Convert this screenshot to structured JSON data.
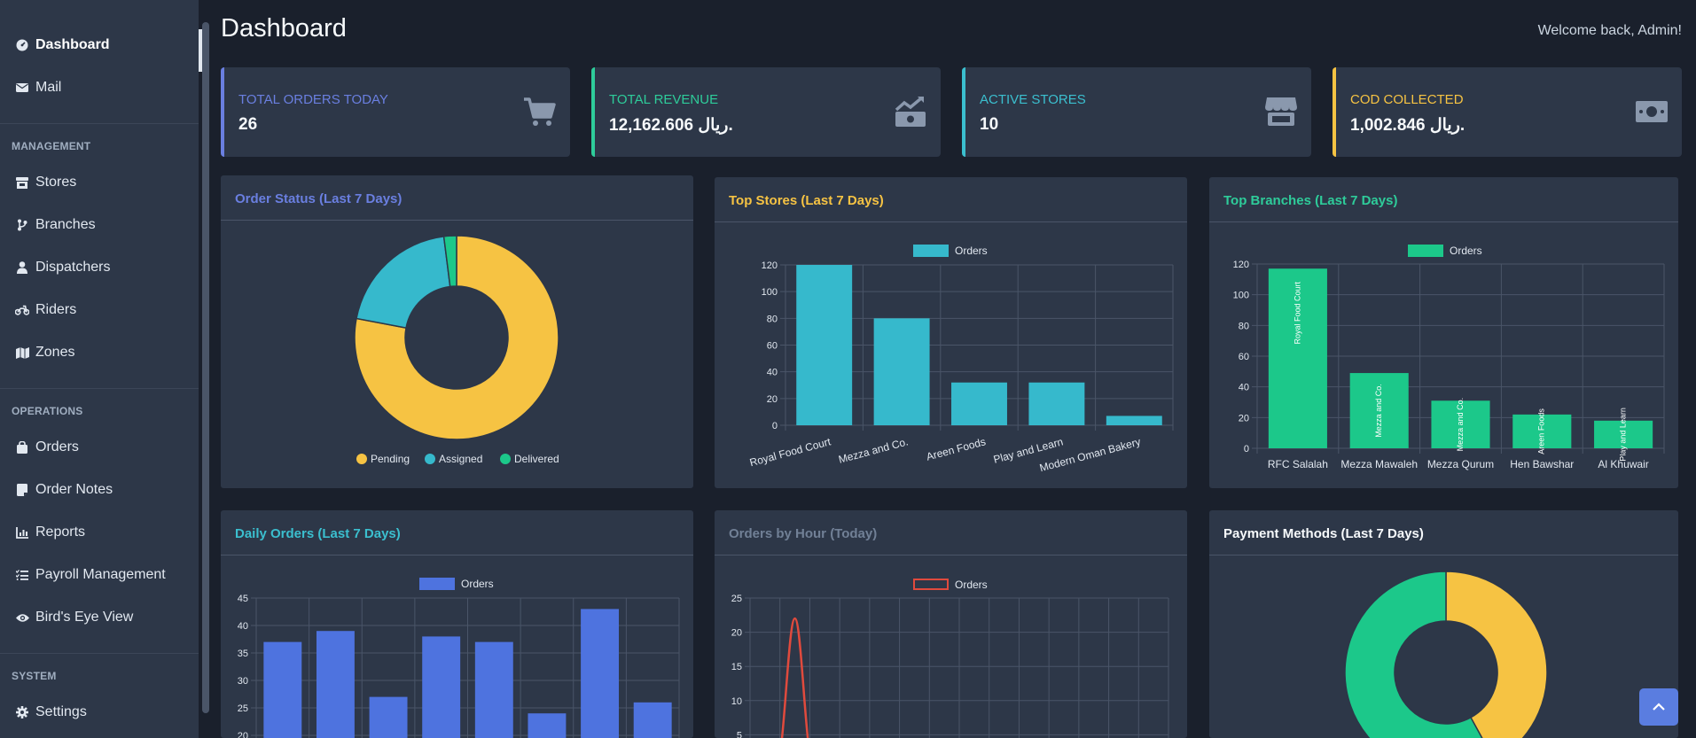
{
  "nav": {
    "top": [
      {
        "label": "Dashboard",
        "icon": "dashboard-icon"
      },
      {
        "label": "Mail",
        "icon": "mail-icon"
      }
    ],
    "sections": [
      {
        "title": "MANAGEMENT",
        "items": [
          {
            "label": "Stores",
            "icon": "store-icon"
          },
          {
            "label": "Branches",
            "icon": "branch-icon"
          },
          {
            "label": "Dispatchers",
            "icon": "user-icon"
          },
          {
            "label": "Riders",
            "icon": "motorcycle-icon"
          },
          {
            "label": "Zones",
            "icon": "map-icon"
          }
        ]
      },
      {
        "title": "OPERATIONS",
        "items": [
          {
            "label": "Orders",
            "icon": "bag-icon"
          },
          {
            "label": "Order Notes",
            "icon": "note-icon"
          },
          {
            "label": "Reports",
            "icon": "chart-icon"
          },
          {
            "label": "Payroll Management",
            "icon": "list-icon"
          },
          {
            "label": "Bird's Eye View",
            "icon": "eye-icon"
          }
        ]
      },
      {
        "title": "SYSTEM",
        "items": [
          {
            "label": "Settings",
            "icon": "gear-icon"
          }
        ]
      }
    ]
  },
  "header": {
    "title": "Dashboard",
    "welcome": "Welcome back, Admin!"
  },
  "stats": [
    {
      "label": "TOTAL ORDERS TODAY",
      "value": "26",
      "color": "#6a7fe0",
      "icon": "cart-icon"
    },
    {
      "label": "TOTAL REVENUE",
      "value": "12,162.606 ريال.",
      "color": "#2ecc9a",
      "icon": "money-chart-icon"
    },
    {
      "label": "ACTIVE STORES",
      "value": "10",
      "color": "#3bbfcf",
      "icon": "storefront-icon"
    },
    {
      "label": "COD COLLECTED",
      "value": "1,002.846 ريال.",
      "color": "#f6c343",
      "icon": "cash-icon"
    }
  ],
  "panels": {
    "order_status": "Order Status (Last 7 Days)",
    "top_stores": "Top Stores (Last 7 Days)",
    "top_branches": "Top Branches (Last 7 Days)",
    "daily_orders": "Daily Orders (Last 7 Days)",
    "orders_by_hour": "Orders by Hour (Today)",
    "payment_methods": "Payment Methods (Last 7 Days)"
  },
  "colors": {
    "yellow": "#f6c343",
    "cyan": "#36b9cc",
    "green": "#1cc88a",
    "blue": "#4e73df",
    "red": "#e04a3d"
  },
  "chart_data": [
    {
      "id": "order_status",
      "type": "pie",
      "labels": [
        "Pending",
        "Assigned",
        "Delivered"
      ],
      "values": [
        78,
        20,
        2
      ],
      "legend": "bottom"
    },
    {
      "id": "top_stores",
      "type": "bar",
      "categories": [
        "Royal Food Court",
        "Mezza and Co.",
        "Areen Foods",
        "Play and Learn",
        "Modern Oman Bakery"
      ],
      "series": [
        {
          "name": "Orders",
          "values": [
            120,
            80,
            32,
            32,
            7
          ]
        }
      ],
      "ylim": [
        0,
        120
      ],
      "yticks": [
        0,
        20,
        40,
        60,
        80,
        100,
        120
      ],
      "legend": "top"
    },
    {
      "id": "top_branches",
      "type": "bar",
      "categories": [
        "RFC Salalah",
        "Mezza Mawaleh",
        "Mezza Qurum",
        "Hen Bawshar",
        "Al Khuwair"
      ],
      "bar_labels": [
        "Royal Food Court",
        "Mezza and Co.",
        "Mezza and Co.",
        "Areen Foods",
        "Play and Learn"
      ],
      "series": [
        {
          "name": "Orders",
          "values": [
            117,
            49,
            31,
            22,
            18
          ]
        }
      ],
      "ylim": [
        0,
        120
      ],
      "yticks": [
        0,
        20,
        40,
        60,
        80,
        100,
        120
      ],
      "legend": "top"
    },
    {
      "id": "daily_orders",
      "type": "bar",
      "categories": [
        "",
        "",
        "",
        "",
        "",
        "",
        "",
        ""
      ],
      "series": [
        {
          "name": "Orders",
          "values": [
            37,
            39,
            27,
            38,
            37,
            24,
            43,
            26
          ]
        }
      ],
      "ylim": [
        0,
        45
      ],
      "yticks": [
        15,
        20,
        25,
        30,
        35,
        40,
        45
      ],
      "legend": "top"
    },
    {
      "id": "orders_by_hour",
      "type": "line",
      "series": [
        {
          "name": "Orders",
          "peak": 22
        }
      ],
      "ylim": [
        0,
        25
      ],
      "yticks": [
        5,
        10,
        15,
        20,
        25
      ],
      "legend": "top"
    },
    {
      "id": "payment_methods",
      "type": "pie",
      "labels": [
        "",
        ""
      ],
      "values": [
        42,
        58
      ]
    }
  ]
}
